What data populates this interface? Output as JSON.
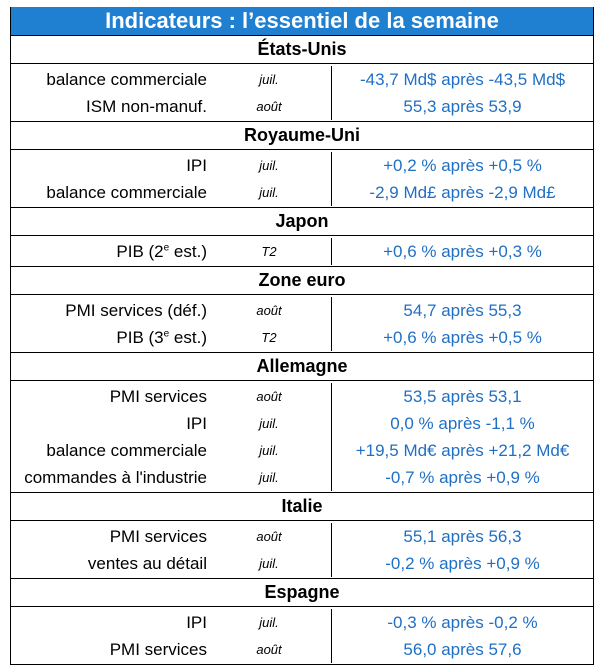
{
  "title": "Indicateurs : l’essentiel de la semaine",
  "sections": [
    {
      "name": "États-Unis",
      "rows": [
        {
          "label": "balance commerciale",
          "period": "juil.",
          "value": "-43,7 Md$ après -43,5 Md$"
        },
        {
          "label": "ISM non-manuf.",
          "period": "août",
          "value": "55,3 après 53,9"
        }
      ]
    },
    {
      "name": "Royaume-Uni",
      "rows": [
        {
          "label": "IPI",
          "period": "juil.",
          "value": "+0,2 % après +0,5 %"
        },
        {
          "label": "balance commerciale",
          "period": "juil.",
          "value": "-2,9 Md£ après -2,9 Md£"
        }
      ]
    },
    {
      "name": "Japon",
      "rows": [
        {
          "label": "PIB (2",
          "label_sup": "e",
          "label_suffix": " est.)",
          "period": "T2",
          "value": "+0,6 % après +0,3 %"
        }
      ]
    },
    {
      "name": "Zone euro",
      "rows": [
        {
          "label": "PMI services (déf.)",
          "period": "août",
          "value": "54,7 après 55,3"
        },
        {
          "label": "PIB (3",
          "label_sup": "e",
          "label_suffix": " est.)",
          "period": "T2",
          "value": "+0,6 % après +0,5 %"
        }
      ]
    },
    {
      "name": "Allemagne",
      "rows": [
        {
          "label": "PMI services",
          "period": "août",
          "value": "53,5 après 53,1"
        },
        {
          "label": "IPI",
          "period": "juil.",
          "value": "0,0 % après -1,1 %"
        },
        {
          "label": "balance commerciale",
          "period": "juil.",
          "value": "+19,5 Md€ après +21,2 Md€"
        },
        {
          "label": "commandes à l'industrie",
          "period": "juil.",
          "value": "-0,7 % après +0,9 %"
        }
      ]
    },
    {
      "name": "Italie",
      "rows": [
        {
          "label": "PMI services",
          "period": "août",
          "value": "55,1 après 56,3"
        },
        {
          "label": "ventes au détail",
          "period": "juil.",
          "value": "-0,2 % après +0,9 %"
        }
      ]
    },
    {
      "name": "Espagne",
      "rows": [
        {
          "label": "IPI",
          "period": "juil.",
          "value": "-0,3 % après -0,2 %"
        },
        {
          "label": "PMI services",
          "period": "août",
          "value": "56,0 après 57,6"
        }
      ]
    }
  ],
  "colors": {
    "title_bg": "#1f7fd0",
    "title_text": "#ffffff",
    "value_text": "#1f6fc5"
  }
}
